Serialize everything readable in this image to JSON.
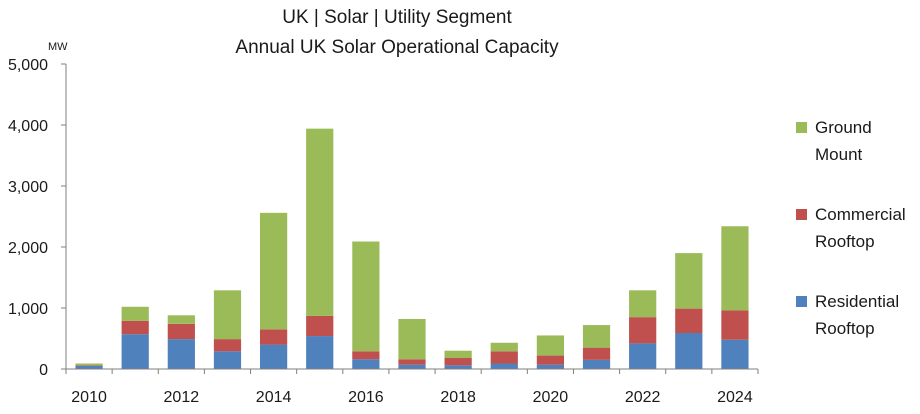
{
  "chart_data": {
    "type": "bar",
    "stacked": true,
    "title": "UK | Solar | Utility Segment",
    "subtitle": "Annual UK Solar Operational Capacity",
    "ylabel": "MW",
    "xlabel": "",
    "ylim": [
      0,
      5000
    ],
    "yticks": [
      "5,000",
      "4,000",
      "3,000",
      "2,000",
      "1,000",
      "0"
    ],
    "categories": [
      "2010",
      "2011",
      "2012",
      "2013",
      "2014",
      "2015",
      "2016",
      "2017",
      "2018",
      "2019",
      "2020",
      "2021",
      "2022",
      "2023",
      "2024"
    ],
    "xtick_labels": [
      "2010",
      "2012",
      "2014",
      "2016",
      "2018",
      "2020",
      "2022",
      "2024"
    ],
    "series": [
      {
        "name": "Residential Rooftop",
        "legend_lines": [
          "Residential",
          "Rooftop"
        ],
        "color": "#4f81bd",
        "values": [
          50,
          570,
          490,
          290,
          400,
          540,
          160,
          70,
          60,
          90,
          70,
          150,
          420,
          590,
          480
        ]
      },
      {
        "name": "Commercial Rooftop",
        "legend_lines": [
          "Commercial",
          "Rooftop"
        ],
        "color": "#c0504d",
        "values": [
          10,
          220,
          250,
          200,
          250,
          330,
          130,
          90,
          120,
          200,
          150,
          200,
          430,
          400,
          480
        ]
      },
      {
        "name": "Ground Mount",
        "legend_lines": [
          "Ground",
          "Mount"
        ],
        "color": "#9bbb59",
        "values": [
          30,
          230,
          140,
          800,
          1910,
          3070,
          1800,
          660,
          120,
          140,
          330,
          370,
          440,
          910,
          1380
        ]
      }
    ],
    "legend_position": "right",
    "grid": false
  }
}
